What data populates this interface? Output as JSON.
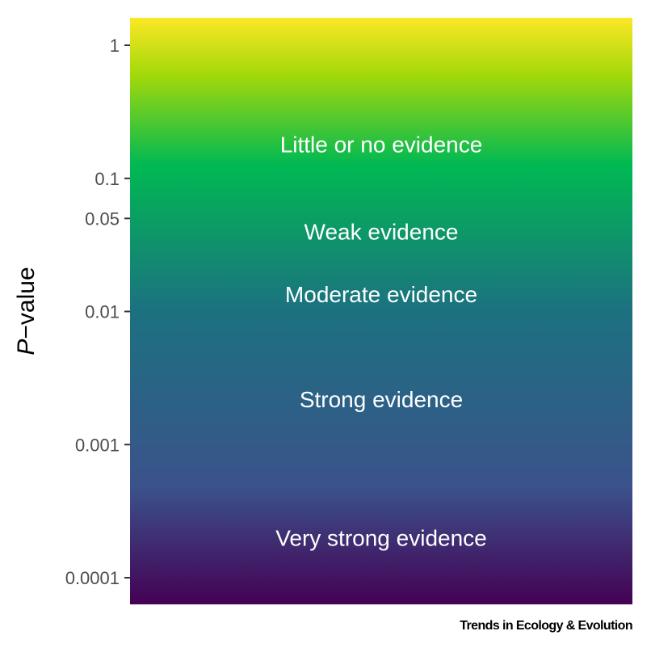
{
  "chart_data": {
    "type": "heatmap",
    "ylabel_italic": "P",
    "ylabel_rest": "−value",
    "y_scale": "log10",
    "ylim": [
      5e-05,
      2
    ],
    "ticks": [
      {
        "value": 1,
        "label": "1"
      },
      {
        "value": 0.1,
        "label": "0.1"
      },
      {
        "value": 0.05,
        "label": "0.05"
      },
      {
        "value": 0.01,
        "label": "0.01"
      },
      {
        "value": 0.001,
        "label": "0.001"
      },
      {
        "value": 0.0001,
        "label": "0.0001"
      }
    ],
    "bands": [
      {
        "label": "Little or no evidence",
        "center": 0.18
      },
      {
        "label": "Weak evidence",
        "center": 0.04
      },
      {
        "label": "Moderate evidence",
        "center": 0.0135
      },
      {
        "label": "Strong evidence",
        "center": 0.0022
      },
      {
        "label": "Very strong evidence",
        "center": 0.0002
      }
    ],
    "colorscale": [
      "#440154",
      "#3b528b",
      "#21908d",
      "#00b953",
      "#a0d80a",
      "#fde725"
    ],
    "colorscale_name": "viridis",
    "grid": false,
    "legend": "none"
  },
  "source": "Trends in Ecology & Evolution"
}
